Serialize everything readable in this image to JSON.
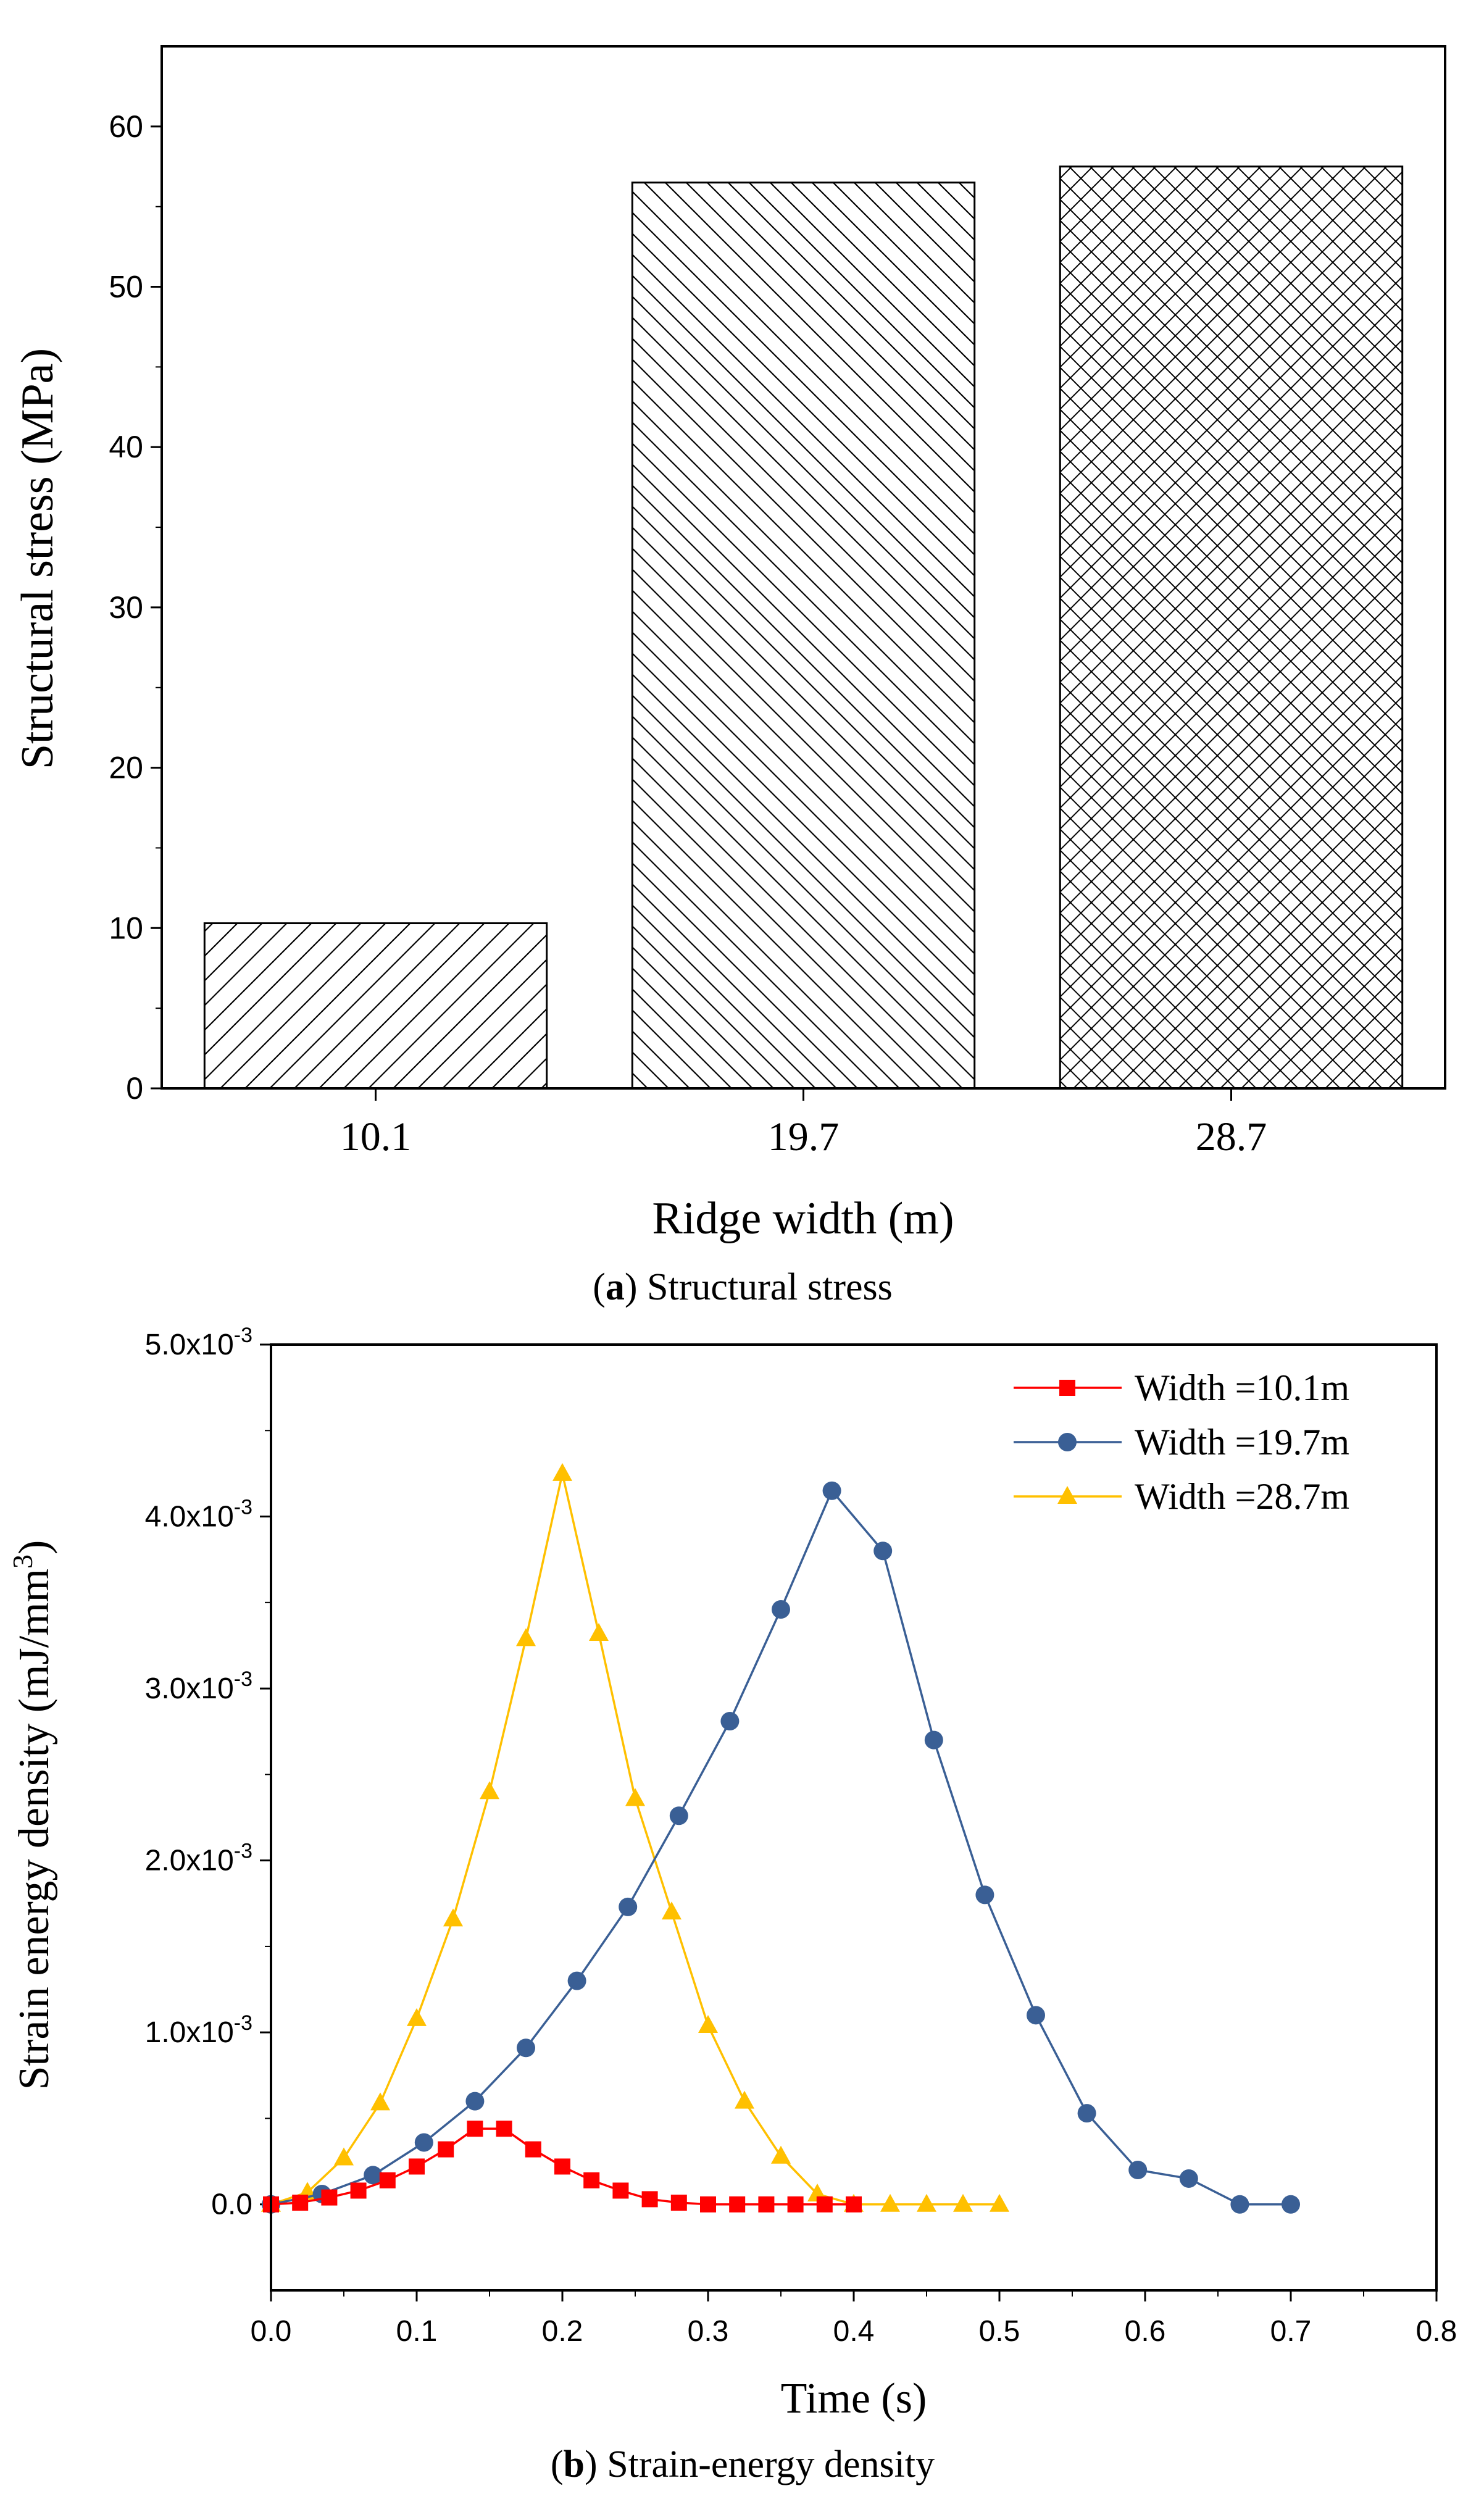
{
  "colors": {
    "axis": "#000000",
    "series": [
      "#ff0000",
      "#3a5f95",
      "#ffc000"
    ]
  },
  "chart_data": [
    {
      "type": "bar",
      "caption_label": "a",
      "caption_title": "Structural stress",
      "xlabel": "Ridge width (m)",
      "ylabel": "Structural stress (MPa)",
      "categories": [
        "10.1",
        "19.7",
        "28.7"
      ],
      "values": [
        10.3,
        56.5,
        57.5
      ],
      "patterns": [
        "hatch-forward",
        "hatch-back",
        "crosshatch"
      ],
      "ylim": [
        0,
        65
      ],
      "yticks": [
        0,
        10,
        20,
        30,
        40,
        50,
        60
      ],
      "ytick_labels": [
        "0",
        "10",
        "20",
        "30",
        "40",
        "50",
        "60"
      ]
    },
    {
      "type": "line",
      "caption_label": "b",
      "caption_title": "Strain-energy density",
      "xlabel": "Time (s)",
      "ylabel": "Strain energy density (mJ/mm",
      "ylabel_sup": "3",
      "ylabel_end": ")",
      "xlim": [
        0.0,
        0.8
      ],
      "ylim": [
        -0.0005,
        0.005
      ],
      "xticks": [
        0.0,
        0.1,
        0.2,
        0.3,
        0.4,
        0.5,
        0.6,
        0.7,
        0.8
      ],
      "xtick_labels": [
        "0.0",
        "0.1",
        "0.2",
        "0.3",
        "0.4",
        "0.5",
        "0.6",
        "0.7",
        "0.8"
      ],
      "yticks": [
        0,
        0.001,
        0.002,
        0.003,
        0.004,
        0.005
      ],
      "ytick_labels": [
        {
          "mantissa": "0.0",
          "exp": ""
        },
        {
          "mantissa": "1.0x10",
          "exp": "-3"
        },
        {
          "mantissa": "2.0x10",
          "exp": "-3"
        },
        {
          "mantissa": "3.0x10",
          "exp": "-3"
        },
        {
          "mantissa": "4.0x10",
          "exp": "-3"
        },
        {
          "mantissa": "5.0x10",
          "exp": "-3"
        }
      ],
      "legend_position": "top-right",
      "series": [
        {
          "name": "Width =10.1m",
          "marker": "square",
          "x": [
            0.0,
            0.02,
            0.04,
            0.06,
            0.08,
            0.1,
            0.12,
            0.14,
            0.16,
            0.18,
            0.2,
            0.22,
            0.24,
            0.26,
            0.28,
            0.3,
            0.32,
            0.34,
            0.36,
            0.38,
            0.4
          ],
          "y": [
            0.0,
            1e-05,
            4e-05,
            8e-05,
            0.00014,
            0.00022,
            0.00032,
            0.00044,
            0.00044,
            0.00032,
            0.00022,
            0.00014,
            8e-05,
            3e-05,
            1e-05,
            0.0,
            0.0,
            0.0,
            0.0,
            0.0,
            0.0
          ]
        },
        {
          "name": "Width =19.7m",
          "marker": "circle",
          "x": [
            0.0,
            0.035,
            0.07,
            0.105,
            0.14,
            0.175,
            0.21,
            0.245,
            0.28,
            0.315,
            0.35,
            0.385,
            0.42,
            0.455,
            0.49,
            0.525,
            0.56,
            0.595,
            0.63,
            0.665,
            0.7
          ],
          "y": [
            0.0,
            6e-05,
            0.00017,
            0.00036,
            0.0006,
            0.00091,
            0.0013,
            0.00173,
            0.00226,
            0.00281,
            0.00346,
            0.00415,
            0.0038,
            0.0027,
            0.0018,
            0.0011,
            0.00053,
            0.0002,
            0.00015,
            0.0,
            0.0
          ]
        },
        {
          "name": "Width =28.7m",
          "marker": "triangle",
          "x": [
            0.0,
            0.025,
            0.05,
            0.075,
            0.1,
            0.125,
            0.15,
            0.175,
            0.2,
            0.225,
            0.25,
            0.275,
            0.3,
            0.325,
            0.35,
            0.375,
            0.4,
            0.425,
            0.45,
            0.475,
            0.5
          ],
          "y": [
            0.0,
            7e-05,
            0.00027,
            0.00059,
            0.00108,
            0.00166,
            0.0024,
            0.00329,
            0.00425,
            0.00332,
            0.00236,
            0.0017,
            0.00104,
            0.0006,
            0.00028,
            6e-05,
            0.0,
            0.0,
            0.0,
            0.0,
            0.0
          ]
        }
      ]
    }
  ]
}
